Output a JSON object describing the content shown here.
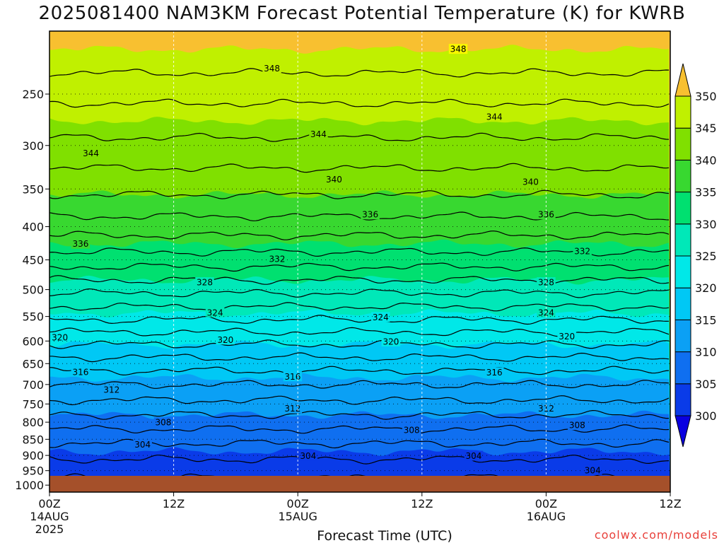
{
  "chart_data": {
    "type": "heatmap",
    "title": "2025081400 NAM3KM Forecast Potential Temperature (K) for KWRB",
    "xlabel": "Forecast Time (UTC)",
    "ylabel": "",
    "x_ticks": [
      {
        "hour": 0,
        "label": "00Z",
        "sub1": "14AUG",
        "sub2": "2025"
      },
      {
        "hour": 12,
        "label": "12Z",
        "sub1": "",
        "sub2": ""
      },
      {
        "hour": 24,
        "label": "00Z",
        "sub1": "15AUG",
        "sub2": ""
      },
      {
        "hour": 36,
        "label": "12Z",
        "sub1": "",
        "sub2": ""
      },
      {
        "hour": 48,
        "label": "00Z",
        "sub1": "16AUG",
        "sub2": ""
      },
      {
        "hour": 60,
        "label": "12Z",
        "sub1": "",
        "sub2": ""
      }
    ],
    "xlim": [
      0,
      60
    ],
    "y_ticks": [
      250,
      300,
      350,
      400,
      450,
      500,
      550,
      600,
      650,
      700,
      750,
      800,
      850,
      900,
      950,
      1000
    ],
    "ylim": [
      200,
      1025
    ],
    "y_scale": "log",
    "y_reversed": true,
    "grid": true,
    "colorbar": {
      "levels": [
        300,
        305,
        310,
        315,
        320,
        325,
        330,
        335,
        340,
        345,
        350
      ],
      "colors": [
        "#0a00e0",
        "#0a3be8",
        "#0f6ff0",
        "#0ba0f5",
        "#00c8f5",
        "#00e8e8",
        "#00e8b8",
        "#00e070",
        "#38d830",
        "#80e000",
        "#c0f000",
        "#f8f800",
        "#f8c030"
      ],
      "extend": "both"
    },
    "profile": [
      {
        "p": 200,
        "theta": 352
      },
      {
        "p": 220,
        "theta": 349
      },
      {
        "p": 250,
        "theta": 346.5
      },
      {
        "p": 300,
        "theta": 343.5
      },
      {
        "p": 350,
        "theta": 340.5
      },
      {
        "p": 400,
        "theta": 337
      },
      {
        "p": 450,
        "theta": 333
      },
      {
        "p": 500,
        "theta": 328.5
      },
      {
        "p": 550,
        "theta": 324.5
      },
      {
        "p": 600,
        "theta": 320.5
      },
      {
        "p": 650,
        "theta": 317
      },
      {
        "p": 700,
        "theta": 314
      },
      {
        "p": 750,
        "theta": 311.5
      },
      {
        "p": 800,
        "theta": 309
      },
      {
        "p": 850,
        "theta": 306.5
      },
      {
        "p": 900,
        "theta": 304.5
      },
      {
        "p": 950,
        "theta": 302.5
      },
      {
        "p": 1000,
        "theta": 301.5
      }
    ],
    "contour_levels": [
      302,
      304,
      306,
      308,
      310,
      312,
      314,
      316,
      318,
      320,
      322,
      324,
      326,
      328,
      330,
      332,
      334,
      336,
      338,
      340,
      342,
      344,
      346,
      348
    ],
    "contour_labels": [
      {
        "value": "348",
        "hour": 21.5,
        "p": 228
      },
      {
        "value": "348",
        "hour": 39.5,
        "p": 213
      },
      {
        "value": "344",
        "hour": 4,
        "p": 308
      },
      {
        "value": "344",
        "hour": 26,
        "p": 288
      },
      {
        "value": "344",
        "hour": 43,
        "p": 271
      },
      {
        "value": "340",
        "hour": 27.5,
        "p": 338
      },
      {
        "value": "340",
        "hour": 46.5,
        "p": 341
      },
      {
        "value": "336",
        "hour": 3,
        "p": 425
      },
      {
        "value": "336",
        "hour": 31,
        "p": 383
      },
      {
        "value": "336",
        "hour": 48,
        "p": 383
      },
      {
        "value": "332",
        "hour": 22,
        "p": 448
      },
      {
        "value": "332",
        "hour": 51.5,
        "p": 436
      },
      {
        "value": "328",
        "hour": 15,
        "p": 487
      },
      {
        "value": "328",
        "hour": 48,
        "p": 487
      },
      {
        "value": "324",
        "hour": 16,
        "p": 542
      },
      {
        "value": "324",
        "hour": 32,
        "p": 551
      },
      {
        "value": "324",
        "hour": 48,
        "p": 542
      },
      {
        "value": "320",
        "hour": 1,
        "p": 592
      },
      {
        "value": "320",
        "hour": 17,
        "p": 597
      },
      {
        "value": "320",
        "hour": 33,
        "p": 601
      },
      {
        "value": "320",
        "hour": 50,
        "p": 590
      },
      {
        "value": "316",
        "hour": 3,
        "p": 669
      },
      {
        "value": "316",
        "hour": 23.5,
        "p": 680
      },
      {
        "value": "316",
        "hour": 43,
        "p": 670
      },
      {
        "value": "312",
        "hour": 6,
        "p": 713
      },
      {
        "value": "312",
        "hour": 23.5,
        "p": 762
      },
      {
        "value": "312",
        "hour": 48,
        "p": 762
      },
      {
        "value": "308",
        "hour": 11,
        "p": 800
      },
      {
        "value": "308",
        "hour": 35,
        "p": 822
      },
      {
        "value": "308",
        "hour": 51,
        "p": 808
      },
      {
        "value": "304",
        "hour": 9,
        "p": 866
      },
      {
        "value": "304",
        "hour": 25,
        "p": 901
      },
      {
        "value": "304",
        "hour": 41,
        "p": 901
      },
      {
        "value": "304",
        "hour": 52.5,
        "p": 948
      }
    ]
  },
  "title_text": "2025081400 NAM3KM Forecast Potential Temperature (K) for KWRB",
  "credit": "coolwx.com/models"
}
